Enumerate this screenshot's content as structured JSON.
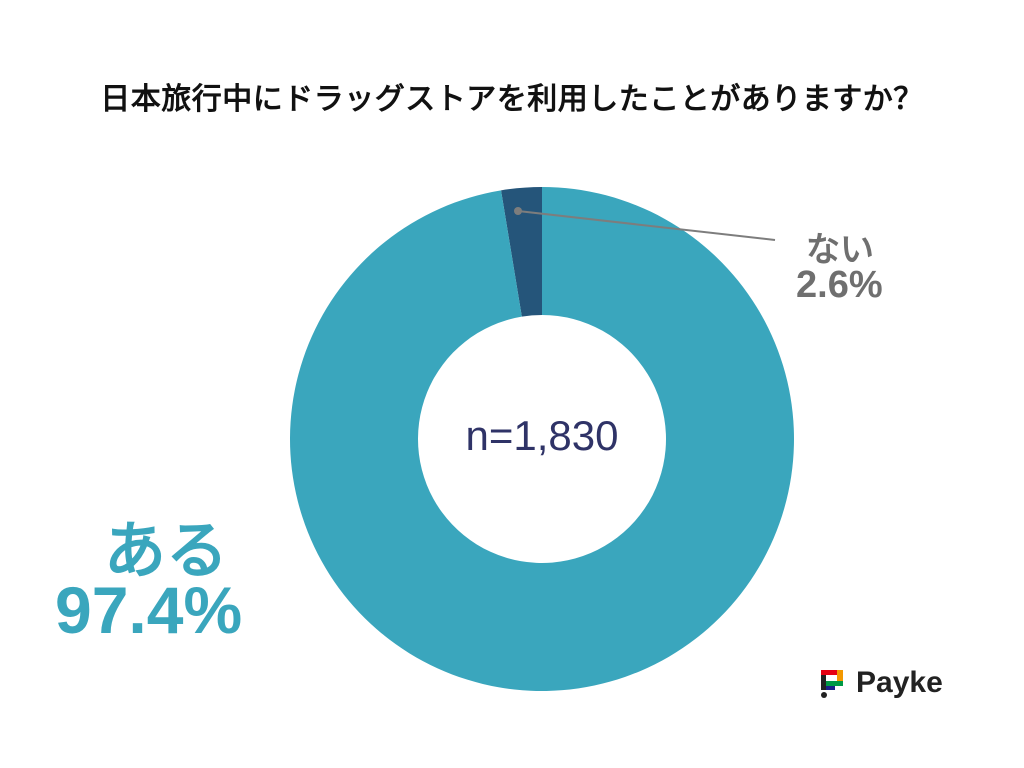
{
  "chart_data": {
    "type": "pie",
    "title": "日本旅行中にドラッグストアを利用したことがありますか？",
    "center_label": "n=1,830",
    "slices": [
      {
        "label": "ない",
        "value": 2.6,
        "value_label": "2.6%",
        "color": "#25557a"
      },
      {
        "label": "ある",
        "value": 97.4,
        "value_label": "97.4%",
        "color": "#3aa6bd"
      }
    ],
    "legend": "none"
  },
  "brand": {
    "name": "Payke"
  },
  "colors": {
    "label_gray": "#6f6f6f",
    "center_text": "#2f3367",
    "leader_line": "#7d7d7d"
  }
}
